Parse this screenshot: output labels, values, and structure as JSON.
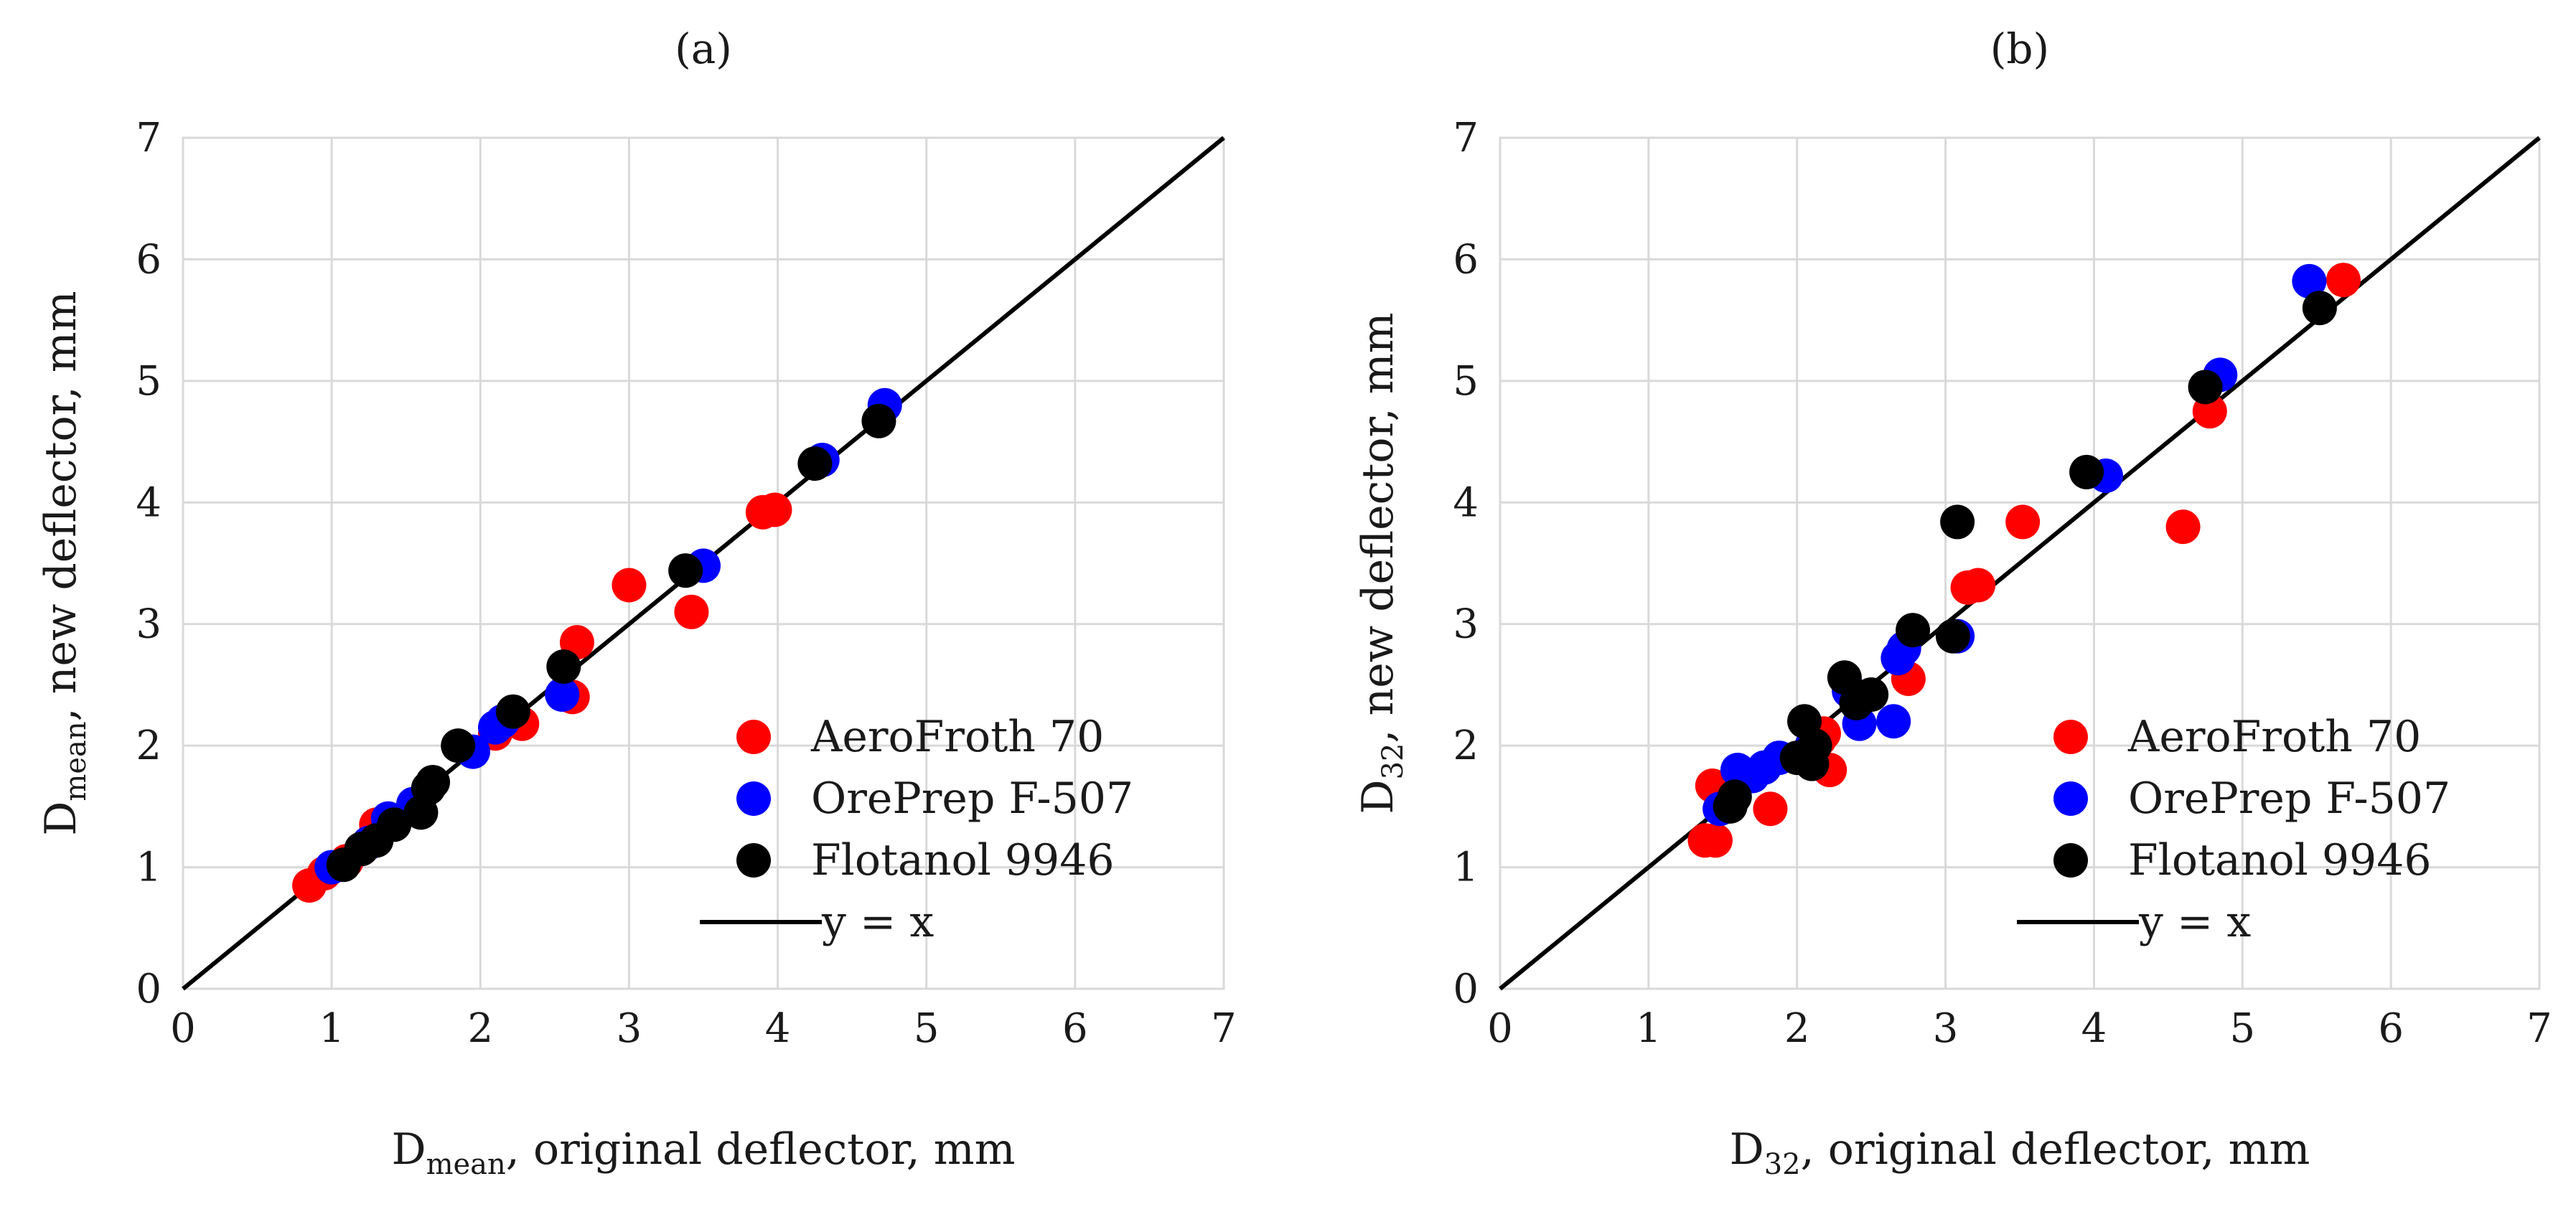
{
  "chart_data": [
    {
      "type": "scatter",
      "panel_label": "(a)",
      "xlabel_main": "D",
      "xlabel_sub": "mean",
      "xlabel_rest": ", original deflector, mm",
      "ylabel_main": "D",
      "ylabel_sub": "mean",
      "ylabel_rest": ", new deflector, mm",
      "xlim": [
        0,
        7
      ],
      "ylim": [
        0,
        7
      ],
      "xticks": [
        "0",
        "1",
        "2",
        "3",
        "4",
        "5",
        "6",
        "7"
      ],
      "yticks": [
        "0",
        "1",
        "2",
        "3",
        "4",
        "5",
        "6",
        "7"
      ],
      "grid": true,
      "legend_position": "bottom-right",
      "series": [
        {
          "name": "AeroFroth 70",
          "color": "#ff0000",
          "points": [
            [
              0.85,
              0.85
            ],
            [
              0.95,
              0.95
            ],
            [
              1.1,
              1.05
            ],
            [
              1.2,
              1.15
            ],
            [
              1.3,
              1.35
            ],
            [
              2.1,
              2.1
            ],
            [
              2.28,
              2.18
            ],
            [
              2.62,
              2.4
            ],
            [
              2.65,
              2.85
            ],
            [
              3.0,
              3.32
            ],
            [
              3.42,
              3.1
            ],
            [
              3.9,
              3.92
            ],
            [
              3.98,
              3.94
            ]
          ]
        },
        {
          "name": "OrePrep F-507",
          "color": "#0000ff",
          "points": [
            [
              1.0,
              1.0
            ],
            [
              1.25,
              1.2
            ],
            [
              1.38,
              1.4
            ],
            [
              1.55,
              1.52
            ],
            [
              1.95,
              1.95
            ],
            [
              2.1,
              2.15
            ],
            [
              2.15,
              2.2
            ],
            [
              2.55,
              2.42
            ],
            [
              3.5,
              3.48
            ],
            [
              4.3,
              4.35
            ],
            [
              4.72,
              4.8
            ]
          ]
        },
        {
          "name": "Flotanol 9946",
          "color": "#000000",
          "points": [
            [
              1.08,
              1.02
            ],
            [
              1.2,
              1.15
            ],
            [
              1.3,
              1.22
            ],
            [
              1.42,
              1.35
            ],
            [
              1.6,
              1.45
            ],
            [
              1.65,
              1.65
            ],
            [
              1.68,
              1.7
            ],
            [
              1.85,
              2.0
            ],
            [
              2.22,
              2.28
            ],
            [
              2.56,
              2.65
            ],
            [
              3.38,
              3.44
            ],
            [
              4.25,
              4.32
            ],
            [
              4.68,
              4.67
            ]
          ]
        }
      ],
      "reference_line": {
        "label": "y = x",
        "from": [
          0,
          0
        ],
        "to": [
          7,
          7
        ]
      }
    },
    {
      "type": "scatter",
      "panel_label": "(b)",
      "xlabel_main": "D",
      "xlabel_sub": "32",
      "xlabel_rest": ", original deflector, mm",
      "ylabel_main": "D",
      "ylabel_sub": "32",
      "ylabel_rest": ", new deflector, mm",
      "xlim": [
        0,
        7
      ],
      "ylim": [
        0,
        7
      ],
      "xticks": [
        "0",
        "1",
        "2",
        "3",
        "4",
        "5",
        "6",
        "7"
      ],
      "yticks": [
        "0",
        "1",
        "2",
        "3",
        "4",
        "5",
        "6",
        "7"
      ],
      "grid": true,
      "legend_position": "bottom-right",
      "series": [
        {
          "name": "AeroFroth 70",
          "color": "#ff0000",
          "points": [
            [
              1.38,
              1.22
            ],
            [
              1.45,
              1.22
            ],
            [
              1.43,
              1.67
            ],
            [
              1.82,
              1.48
            ],
            [
              2.22,
              1.8
            ],
            [
              2.15,
              2.05
            ],
            [
              2.18,
              2.1
            ],
            [
              2.75,
              2.55
            ],
            [
              3.15,
              3.3
            ],
            [
              3.22,
              3.32
            ],
            [
              3.52,
              3.84
            ],
            [
              4.6,
              3.8
            ],
            [
              4.78,
              4.75
            ],
            [
              5.68,
              5.83
            ]
          ]
        },
        {
          "name": "OrePrep F-507",
          "color": "#0000ff",
          "points": [
            [
              1.48,
              1.48
            ],
            [
              1.6,
              1.8
            ],
            [
              1.7,
              1.75
            ],
            [
              1.78,
              1.82
            ],
            [
              1.88,
              1.9
            ],
            [
              2.1,
              2.0
            ],
            [
              2.35,
              2.45
            ],
            [
              2.42,
              2.18
            ],
            [
              2.65,
              2.2
            ],
            [
              2.68,
              2.72
            ],
            [
              2.72,
              2.8
            ],
            [
              3.08,
              2.9
            ],
            [
              4.08,
              4.22
            ],
            [
              4.85,
              5.05
            ],
            [
              5.45,
              5.82
            ]
          ]
        },
        {
          "name": "Flotanol 9946",
          "color": "#000000",
          "points": [
            [
              1.55,
              1.5
            ],
            [
              1.58,
              1.58
            ],
            [
              2.0,
              1.9
            ],
            [
              2.05,
              2.2
            ],
            [
              2.1,
              1.85
            ],
            [
              2.12,
              2.0
            ],
            [
              2.32,
              2.56
            ],
            [
              2.4,
              2.35
            ],
            [
              2.5,
              2.42
            ],
            [
              2.78,
              2.95
            ],
            [
              3.05,
              2.9
            ],
            [
              3.08,
              3.84
            ],
            [
              3.95,
              4.25
            ],
            [
              4.75,
              4.95
            ],
            [
              5.52,
              5.6
            ]
          ]
        }
      ],
      "reference_line": {
        "label": "y = x",
        "from": [
          0,
          0
        ],
        "to": [
          7,
          7
        ]
      }
    }
  ]
}
